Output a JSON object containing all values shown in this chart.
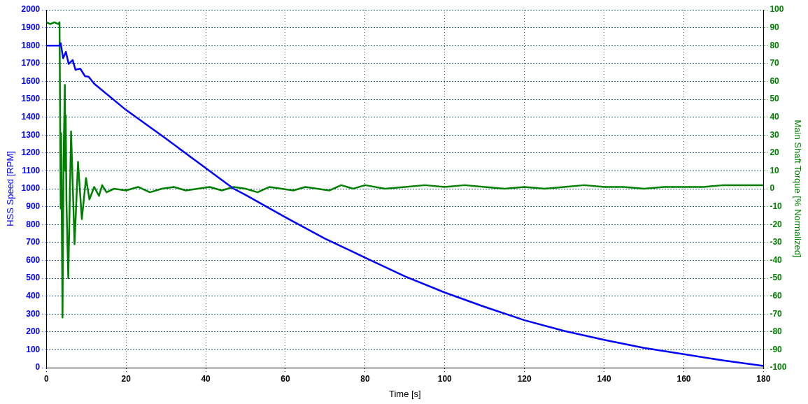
{
  "chart_data": {
    "type": "line",
    "xlabel": "Time [s]",
    "ylabel": "HSS Speed [RPM]",
    "y2label": "Main Shaft Torque [% Normalized]",
    "xlim": [
      0,
      180
    ],
    "xticks": [
      0,
      20,
      40,
      60,
      80,
      100,
      120,
      140,
      160,
      180
    ],
    "ylim": [
      0,
      2000
    ],
    "yticks": [
      0,
      100,
      200,
      300,
      400,
      500,
      600,
      700,
      800,
      900,
      1000,
      1100,
      1200,
      1300,
      1400,
      1500,
      1600,
      1700,
      1800,
      1900,
      2000
    ],
    "y2lim": [
      -100,
      100
    ],
    "y2ticks": [
      -100,
      -90,
      -80,
      -70,
      -60,
      -50,
      -40,
      -30,
      -20,
      -10,
      0,
      10,
      20,
      30,
      40,
      50,
      60,
      70,
      80,
      90,
      100
    ],
    "grid": true,
    "legend": false,
    "marker": "none",
    "line_style": "solid",
    "series": [
      {
        "color": "#0000ff",
        "x": [
          0,
          3.3,
          3.6,
          4.2,
          4.9,
          5.6,
          6.6,
          7.3,
          8.5,
          9.7,
          10.6,
          12.0,
          20,
          30,
          40,
          47,
          50,
          60,
          70,
          80,
          90,
          100,
          110,
          120,
          130,
          140,
          150,
          160,
          170,
          180
        ],
        "values": [
          1800,
          1800,
          1813,
          1729,
          1765,
          1697,
          1719,
          1665,
          1671,
          1629,
          1626,
          1587,
          1440,
          1280,
          1115,
          1000,
          965,
          840,
          720,
          615,
          510,
          420,
          340,
          265,
          205,
          155,
          110,
          75,
          40,
          10
        ]
      },
      {
        "color": "#008000",
        "axis": "y2",
        "x": [
          0,
          1,
          2,
          3,
          3.3,
          3.6,
          3.7,
          4.05,
          4.3,
          4.64,
          4.75,
          4.85,
          5.04,
          5.5,
          6.2,
          7.07,
          7.94,
          8.9,
          9.95,
          10.8,
          12.0,
          13.2,
          14.0,
          15.1,
          17,
          20,
          23,
          26,
          29,
          32,
          35,
          38,
          41,
          44,
          47,
          50,
          53,
          56,
          59,
          62,
          65,
          68,
          71,
          74,
          77,
          80,
          85,
          90,
          95,
          100,
          105,
          110,
          115,
          120,
          125,
          130,
          135,
          140,
          145,
          150,
          155,
          160,
          165,
          170,
          175,
          180
        ],
        "values": [
          93,
          92,
          93,
          92,
          93,
          -11,
          31,
          -72,
          15,
          58,
          10,
          41,
          -8,
          -50,
          32,
          -31,
          15,
          -17,
          6,
          -6,
          1,
          -4,
          2,
          -2,
          0,
          -1,
          1,
          -2,
          0,
          1,
          -1,
          0,
          1,
          -1,
          1,
          0,
          -2,
          1,
          0,
          -1,
          1,
          0,
          -1,
          2,
          0,
          2,
          0,
          1,
          2,
          1,
          2,
          1,
          0,
          1,
          0,
          1,
          2,
          1,
          1,
          0,
          1,
          1,
          1,
          2,
          2,
          2
        ]
      }
    ]
  }
}
